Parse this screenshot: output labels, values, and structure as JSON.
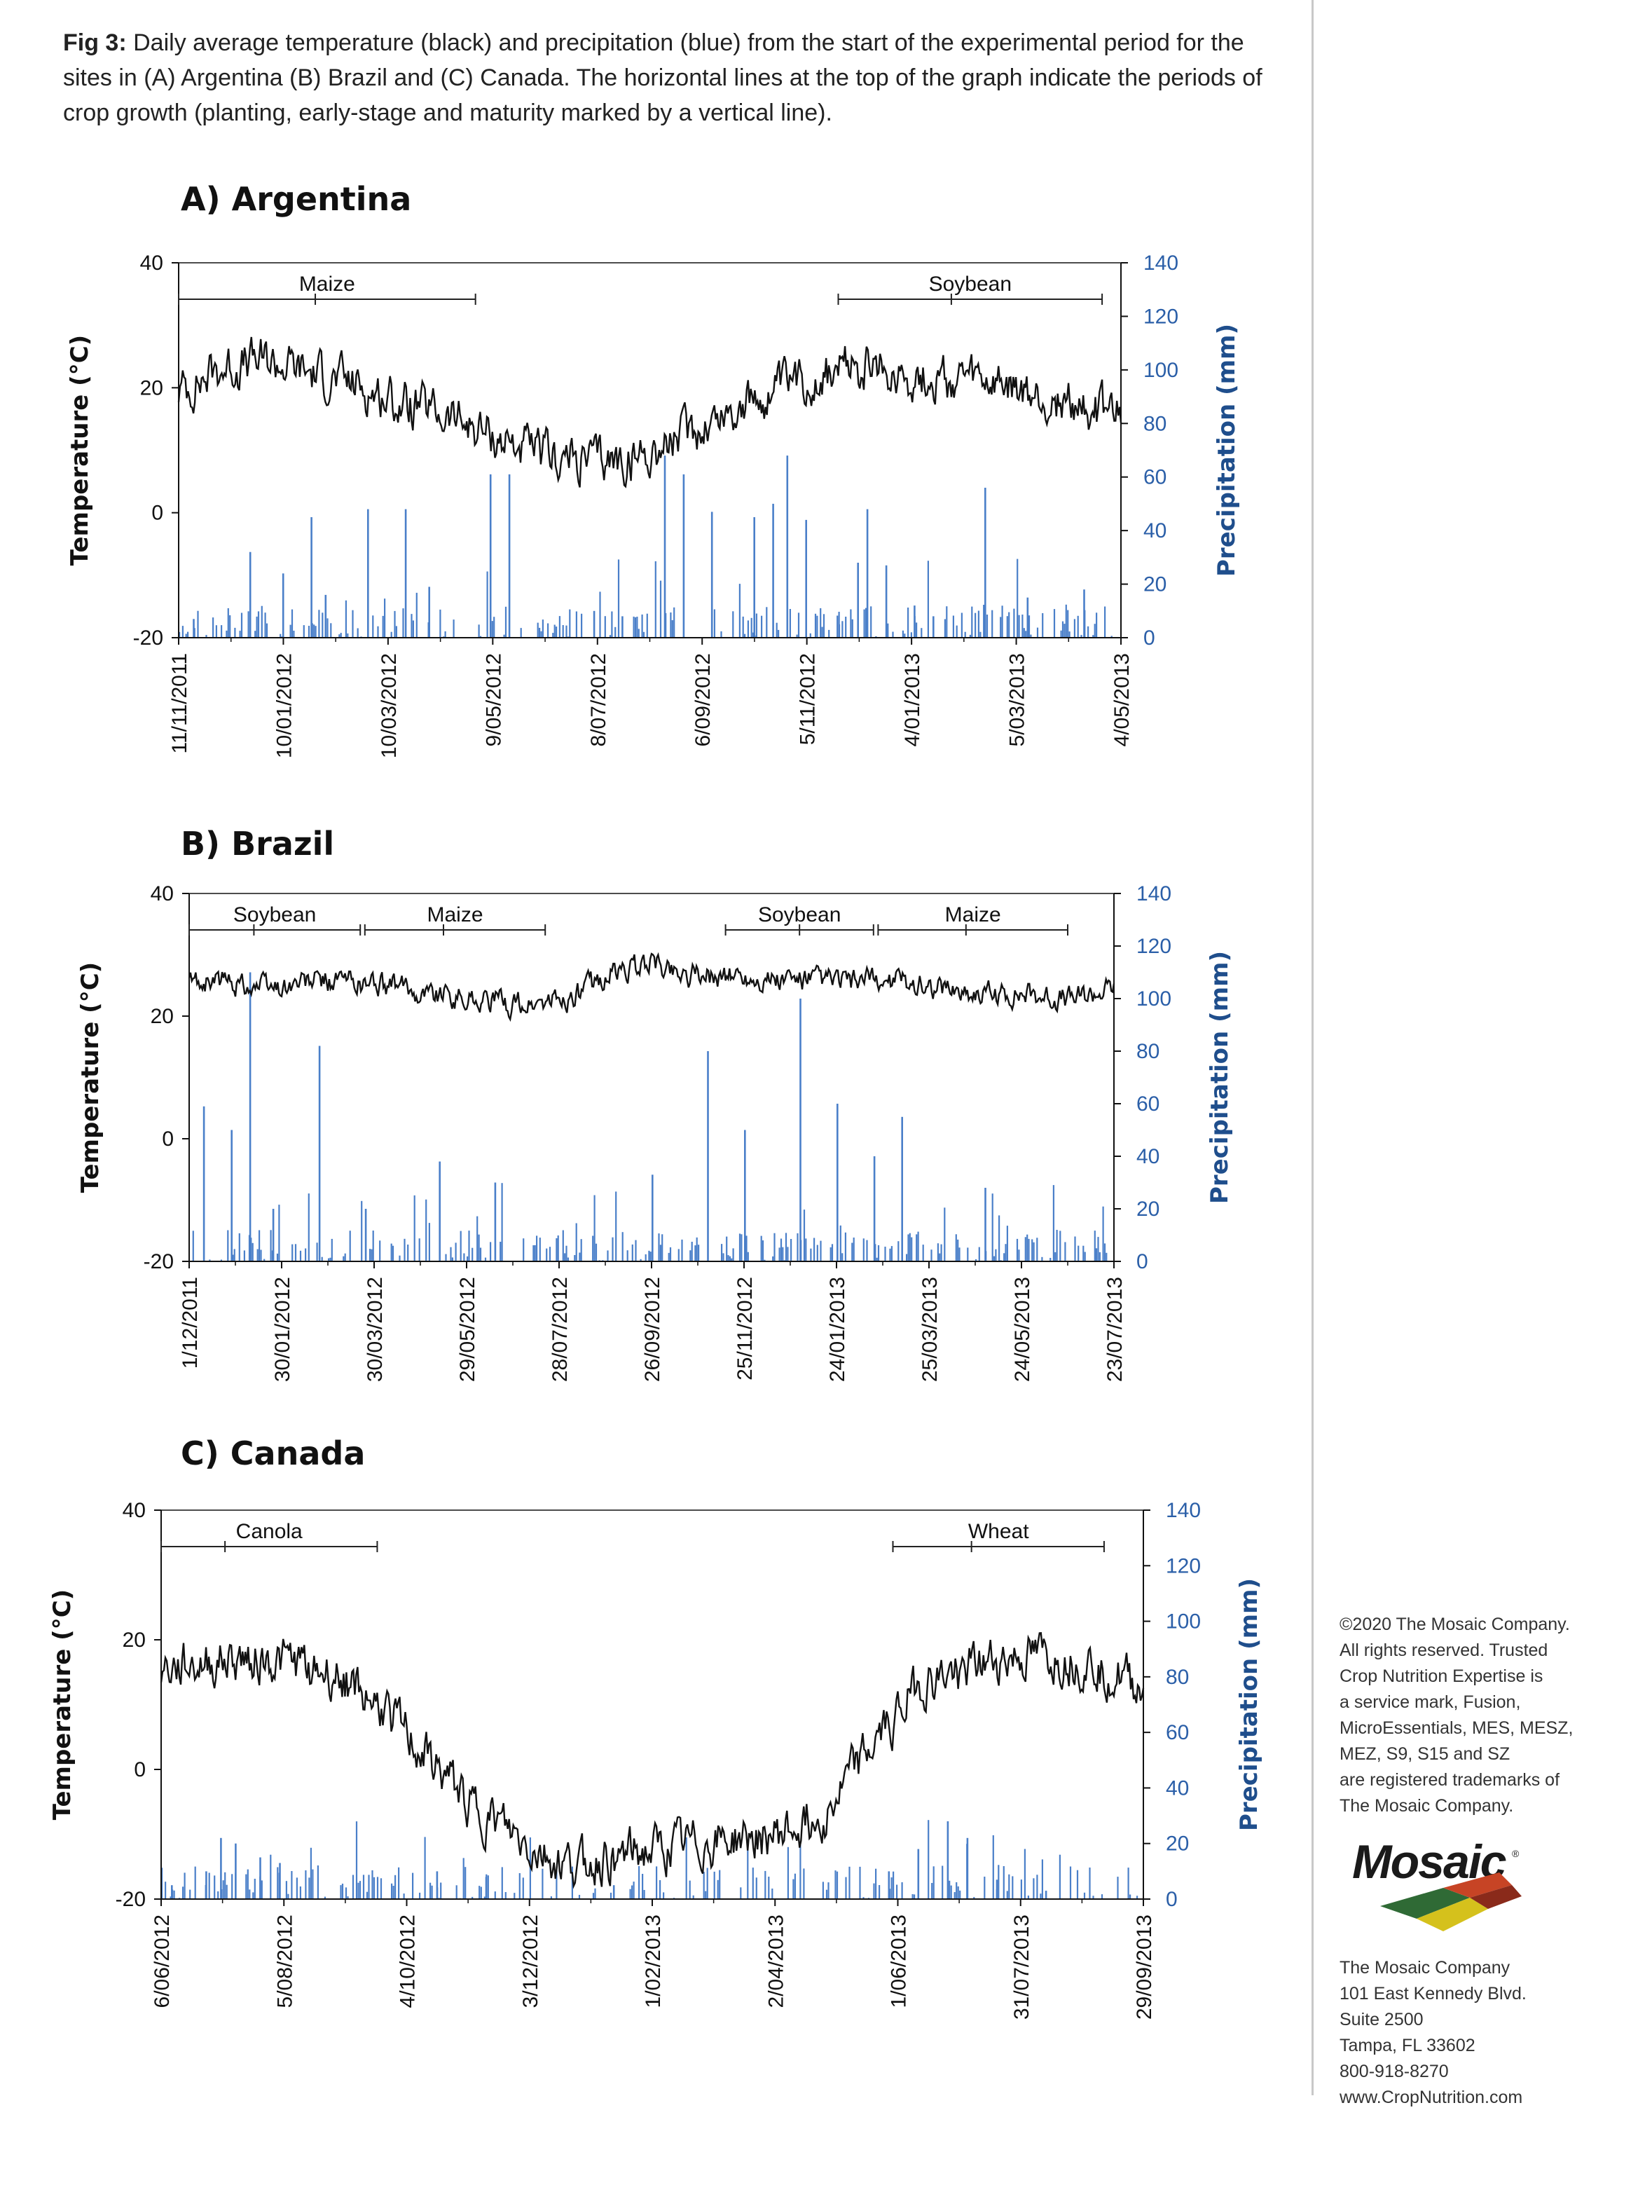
{
  "caption": {
    "label": "Fig 3:",
    "text": "Daily average temperature (black) and precipitation (blue) from the start of the experimental period for the sites in (A) Argentina (B) Brazil and (C) Canada. The horizontal lines at the top of the graph indicate the periods of crop growth (planting, early-stage and maturity marked by a vertical line)."
  },
  "colors": {
    "temperature": "#111111",
    "precipitation": "#4a7fc9",
    "right_axis": "#2b5fa8"
  },
  "footer": {
    "legal": [
      "©2020 The Mosaic Company.",
      "All rights reserved. Trusted",
      "Crop Nutrition Expertise is",
      "a service mark, Fusion,",
      "MicroEssentials, MES, MESZ,",
      "MEZ, S9, S15 and SZ",
      "are registered trademarks of",
      "The Mosaic Company."
    ],
    "logo_text": "Mosaic",
    "address": [
      "The Mosaic Company",
      "101 East Kennedy Blvd.",
      "Suite 2500",
      "Tampa, FL 33602",
      "800-918-8270",
      "www.CropNutrition.com"
    ]
  },
  "chart_data": [
    {
      "type": "line",
      "title": "A) Argentina",
      "ylabel": "Temperature (°C)",
      "y2label": "Precipitation (mm)",
      "ylim": [
        -20,
        40
      ],
      "y2lim": [
        0,
        140
      ],
      "yticks": [
        "40",
        "20",
        "0",
        "-20"
      ],
      "y2ticks": [
        "140",
        "120",
        "100",
        "80",
        "60",
        "40",
        "20",
        "0"
      ],
      "xticks": [
        "11/11/2011",
        "10/01/2012",
        "10/03/2012",
        "9/05/2012",
        "8/07/2012",
        "6/09/2012",
        "5/11/2012",
        "4/01/2013",
        "5/03/2013",
        "4/05/2013"
      ],
      "crop_periods": [
        {
          "crop": "Maize",
          "start": 0.0,
          "mid": 0.145,
          "end": 0.315
        },
        {
          "crop": "Soybean",
          "start": 0.7,
          "mid": 0.82,
          "end": 0.98
        }
      ],
      "temperature_profile": [
        20,
        24,
        25,
        23,
        21,
        18,
        16,
        13,
        10,
        9,
        9,
        12,
        16,
        19,
        22,
        24,
        23,
        22,
        21,
        19,
        18,
        16
      ],
      "precipitation_events": [
        [
          0.015,
          7
        ],
        [
          0.075,
          32
        ],
        [
          0.11,
          24
        ],
        [
          0.14,
          45
        ],
        [
          0.155,
          16
        ],
        [
          0.2,
          48
        ],
        [
          0.24,
          48
        ],
        [
          0.265,
          19
        ],
        [
          0.33,
          61
        ],
        [
          0.35,
          61
        ],
        [
          0.44,
          10
        ],
        [
          0.47,
          8
        ],
        [
          0.515,
          68
        ],
        [
          0.535,
          61
        ],
        [
          0.565,
          47
        ],
        [
          0.61,
          45
        ],
        [
          0.63,
          50
        ],
        [
          0.645,
          68
        ],
        [
          0.665,
          44
        ],
        [
          0.7,
          5
        ],
        [
          0.72,
          28
        ],
        [
          0.73,
          48
        ],
        [
          0.75,
          27
        ],
        [
          0.78,
          12
        ],
        [
          0.8,
          8
        ],
        [
          0.855,
          56
        ],
        [
          0.9,
          15
        ],
        [
          0.96,
          18
        ]
      ]
    },
    {
      "type": "line",
      "title": "B) Brazil",
      "ylabel": "Temperature (°C)",
      "y2label": "Precipitation (mm)",
      "ylim": [
        -20,
        40
      ],
      "y2lim": [
        0,
        140
      ],
      "yticks": [
        "40",
        "20",
        "0",
        "-20"
      ],
      "y2ticks": [
        "140",
        "120",
        "100",
        "80",
        "60",
        "40",
        "20",
        "0"
      ],
      "xticks": [
        "1/12/2011",
        "30/01/2012",
        "30/03/2012",
        "29/05/2012",
        "28/07/2012",
        "26/09/2012",
        "25/11/2012",
        "24/01/2013",
        "25/03/2013",
        "24/05/2013",
        "23/07/2013"
      ],
      "crop_periods": [
        {
          "crop": "Soybean",
          "start": 0.0,
          "mid": 0.07,
          "end": 0.185
        },
        {
          "crop": "Maize",
          "start": 0.19,
          "mid": 0.275,
          "end": 0.385
        },
        {
          "crop": "Soybean",
          "start": 0.58,
          "mid": 0.66,
          "end": 0.74
        },
        {
          "crop": "Maize",
          "start": 0.745,
          "mid": 0.84,
          "end": 0.95
        }
      ],
      "temperature_profile": [
        26,
        26,
        25,
        26,
        26,
        25,
        24,
        23,
        22,
        23,
        27,
        29,
        27,
        27,
        26,
        26,
        26,
        26,
        25,
        24,
        24,
        23,
        25
      ],
      "precipitation_events": [
        [
          0.015,
          59
        ],
        [
          0.045,
          50
        ],
        [
          0.065,
          110
        ],
        [
          0.09,
          20
        ],
        [
          0.14,
          82
        ],
        [
          0.19,
          20
        ],
        [
          0.27,
          38
        ],
        [
          0.33,
          30
        ],
        [
          0.5,
          33
        ],
        [
          0.56,
          80
        ],
        [
          0.6,
          50
        ],
        [
          0.66,
          100
        ],
        [
          0.7,
          60
        ],
        [
          0.74,
          40
        ],
        [
          0.77,
          55
        ],
        [
          0.86,
          28
        ],
        [
          0.98,
          5
        ]
      ]
    },
    {
      "type": "line",
      "title": "C) Canada",
      "ylabel": "Temperature (°C)",
      "y2label": "Precipitation (mm)",
      "ylim": [
        -20,
        40
      ],
      "y2lim": [
        0,
        140
      ],
      "yticks": [
        "40",
        "20",
        "0",
        "-20"
      ],
      "y2ticks": [
        "140",
        "120",
        "100",
        "80",
        "60",
        "40",
        "20",
        "0"
      ],
      "xticks": [
        "6/06/2012",
        "5/08/2012",
        "4/10/2012",
        "3/12/2012",
        "1/02/2013",
        "2/04/2013",
        "1/06/2013",
        "31/07/2013",
        "29/09/2013"
      ],
      "crop_periods": [
        {
          "crop": "Canola",
          "start": 0.0,
          "mid": 0.065,
          "end": 0.22
        },
        {
          "crop": "Wheat",
          "start": 0.745,
          "mid": 0.825,
          "end": 0.96
        }
      ],
      "temperature_profile": [
        16,
        17,
        18,
        17,
        15,
        10,
        2,
        -5,
        -10,
        -14,
        -13,
        -12,
        -11,
        -10,
        -9,
        -5,
        5,
        14,
        16,
        18,
        18,
        17,
        13
      ],
      "precipitation_events": [
        [
          0.01,
          5
        ],
        [
          0.045,
          10
        ],
        [
          0.06,
          22
        ],
        [
          0.075,
          20
        ],
        [
          0.1,
          15
        ],
        [
          0.12,
          13
        ],
        [
          0.28,
          10
        ],
        [
          0.33,
          8
        ],
        [
          0.46,
          5
        ],
        [
          0.74,
          10
        ],
        [
          0.77,
          18
        ],
        [
          0.8,
          28
        ],
        [
          0.82,
          22
        ],
        [
          0.85,
          7
        ],
        [
          0.9,
          3
        ]
      ]
    }
  ]
}
